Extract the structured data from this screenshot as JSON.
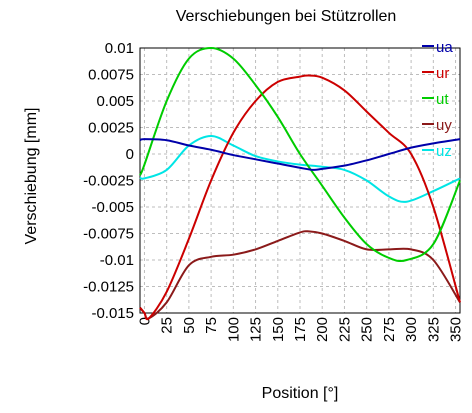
{
  "chart_data": {
    "type": "line",
    "title": "Verschiebungen bei Stützrollen",
    "xlabel": "Position [°]",
    "ylabel": "Verschiebung [mm]",
    "xlim": [
      -5,
      355
    ],
    "ylim": [
      -0.015,
      0.01
    ],
    "x_ticks": [
      0,
      25,
      50,
      75,
      100,
      125,
      150,
      175,
      200,
      225,
      250,
      275,
      300,
      325,
      350
    ],
    "x_tick_labels": [
      "0",
      "25",
      "50",
      "75",
      "100",
      "125",
      "150",
      "175",
      "200",
      "225",
      "250",
      "275",
      "300",
      "325",
      "350"
    ],
    "y_ticks": [
      0.01,
      0.0075,
      0.005,
      0.0025,
      0,
      -0.0025,
      -0.005,
      -0.0075,
      -0.01,
      -0.0125,
      -0.015
    ],
    "y_tick_labels": [
      "0.01",
      "0.0075",
      "0.005",
      "0.0025",
      "0",
      "-0.0025",
      "-0.005",
      "-0.0075",
      "-0.01",
      "-0.0125",
      "-0.015"
    ],
    "grid": true,
    "legend_position": "top-right",
    "series": [
      {
        "name": "ua",
        "color": "#0000aa",
        "x": [
          -5,
          0,
          25,
          50,
          75,
          100,
          125,
          150,
          175,
          190,
          200,
          225,
          250,
          275,
          300,
          325,
          355
        ],
        "y": [
          0.0013,
          0.0014,
          0.0013,
          0.0008,
          0.0004,
          -0.0001,
          -0.0005,
          -0.0009,
          -0.0013,
          -0.0015,
          -0.0014,
          -0.0011,
          -0.0006,
          0.0,
          0.0006,
          0.001,
          0.0014
        ]
      },
      {
        "name": "ur",
        "color": "#cc0000",
        "x": [
          -5,
          0,
          5,
          25,
          50,
          75,
          100,
          125,
          150,
          175,
          185,
          200,
          225,
          250,
          275,
          300,
          325,
          355
        ],
        "y": [
          -0.0145,
          -0.015,
          -0.0155,
          -0.013,
          -0.008,
          -0.0025,
          0.002,
          0.005,
          0.0068,
          0.0073,
          0.0074,
          0.0072,
          0.006,
          0.004,
          0.002,
          0.0,
          -0.005,
          -0.014
        ]
      },
      {
        "name": "ut",
        "color": "#00cc00",
        "x": [
          -5,
          0,
          25,
          50,
          75,
          100,
          125,
          150,
          175,
          200,
          225,
          250,
          275,
          295,
          325,
          355
        ],
        "y": [
          -0.002,
          -0.001,
          0.005,
          0.009,
          0.01,
          0.009,
          0.0065,
          0.0035,
          0.0,
          -0.003,
          -0.006,
          -0.0085,
          -0.0098,
          -0.01,
          -0.0085,
          -0.0025
        ]
      },
      {
        "name": "uy",
        "color": "#8b1a1a",
        "x": [
          -5,
          0,
          5,
          25,
          50,
          75,
          100,
          125,
          150,
          175,
          185,
          200,
          225,
          250,
          275,
          300,
          325,
          355
        ],
        "y": [
          -0.0145,
          -0.015,
          -0.0155,
          -0.014,
          -0.0105,
          -0.0097,
          -0.0095,
          -0.009,
          -0.0082,
          -0.0074,
          -0.0073,
          -0.0075,
          -0.0082,
          -0.009,
          -0.009,
          -0.009,
          -0.01,
          -0.014
        ]
      },
      {
        "name": "uz",
        "color": "#00e5e5",
        "x": [
          -5,
          0,
          25,
          50,
          75,
          100,
          125,
          150,
          175,
          200,
          225,
          250,
          275,
          295,
          325,
          355
        ],
        "y": [
          -0.0022,
          -0.0023,
          -0.0015,
          0.0008,
          0.0017,
          0.0008,
          -0.0002,
          -0.0007,
          -0.001,
          -0.0012,
          -0.0015,
          -0.0025,
          -0.004,
          -0.0045,
          -0.0035,
          -0.0023
        ]
      }
    ]
  }
}
